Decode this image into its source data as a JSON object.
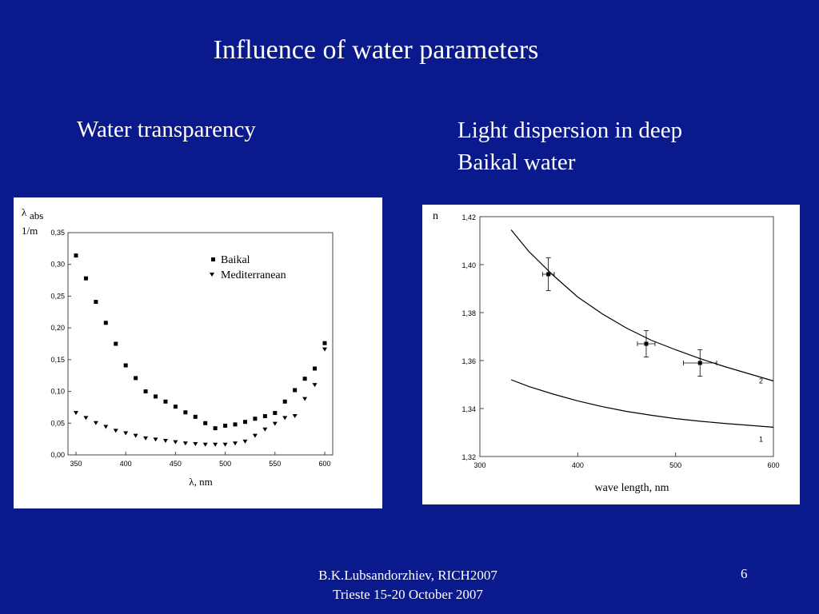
{
  "slide": {
    "title": "Influence of water parameters",
    "left_heading": "Water transparency",
    "right_heading_line1": "Light dispersion in deep",
    "right_heading_line2": "Baikal water",
    "footer_line1": "B.K.Lubsandorzhiev, RICH2007",
    "footer_line2": "Trieste 15-20 October 2007",
    "page_number": "6"
  },
  "chart_data": [
    {
      "type": "scatter",
      "ylabel_symbol": "λ",
      "ylabel_sub": "abs",
      "yunit": "1/m",
      "xlabel": "λ, nm",
      "xlim": [
        350,
        600
      ],
      "ylim": [
        0,
        0.35
      ],
      "x_ticks": [
        "350",
        "400",
        "450",
        "500",
        "550",
        "600"
      ],
      "y_ticks": [
        "0,00",
        "0,05",
        "0,10",
        "0,15",
        "0,20",
        "0,25",
        "0,30",
        "0,35"
      ],
      "legend_position": "top-right",
      "series": [
        {
          "name": "Baikal",
          "marker": "square",
          "x": [
            350,
            360,
            370,
            380,
            390,
            400,
            410,
            420,
            430,
            440,
            450,
            460,
            470,
            480,
            490,
            500,
            510,
            520,
            530,
            540,
            550,
            560,
            570,
            580,
            590,
            600
          ],
          "y": [
            0.314,
            0.278,
            0.241,
            0.208,
            0.175,
            0.141,
            0.121,
            0.1,
            0.092,
            0.084,
            0.076,
            0.067,
            0.06,
            0.05,
            0.042,
            0.046,
            0.048,
            0.052,
            0.057,
            0.061,
            0.066,
            0.084,
            0.102,
            0.12,
            0.136,
            0.176
          ]
        },
        {
          "name": "Mediterranean",
          "marker": "triangle-down",
          "x": [
            350,
            360,
            370,
            380,
            390,
            400,
            410,
            420,
            430,
            440,
            450,
            460,
            470,
            480,
            490,
            500,
            510,
            520,
            530,
            540,
            550,
            560,
            570,
            580,
            590,
            600
          ],
          "y": [
            0.066,
            0.058,
            0.05,
            0.044,
            0.038,
            0.034,
            0.03,
            0.026,
            0.024,
            0.022,
            0.02,
            0.018,
            0.017,
            0.016,
            0.016,
            0.016,
            0.018,
            0.021,
            0.03,
            0.04,
            0.049,
            0.058,
            0.061,
            0.088,
            0.11,
            0.166
          ]
        }
      ]
    },
    {
      "type": "line",
      "ylabel": "n",
      "xlabel": "wave length, nm",
      "xlim": [
        300,
        600
      ],
      "ylim": [
        1.32,
        1.42
      ],
      "x_ticks": [
        "300",
        "400",
        "500",
        "600"
      ],
      "y_ticks": [
        "1,32",
        "1,34",
        "1,36",
        "1,38",
        "1,40",
        "1,42"
      ],
      "curves": [
        {
          "label": "2",
          "x": [
            332,
            350,
            375,
            400,
            425,
            450,
            475,
            500,
            525,
            550,
            575,
            600
          ],
          "y": [
            1.4145,
            1.4055,
            1.3955,
            1.3865,
            1.3795,
            1.3735,
            1.3685,
            1.3645,
            1.3608,
            1.3575,
            1.3545,
            1.3515
          ]
        },
        {
          "label": "1",
          "x": [
            332,
            350,
            375,
            400,
            425,
            450,
            475,
            500,
            525,
            550,
            575,
            600
          ],
          "y": [
            1.352,
            1.3492,
            1.346,
            1.3432,
            1.3408,
            1.3388,
            1.3372,
            1.3358,
            1.3347,
            1.3338,
            1.333,
            1.3322
          ]
        }
      ],
      "points": [
        {
          "x": 370,
          "y": 1.396,
          "xerr": 6,
          "yerr": 0.0068
        },
        {
          "x": 470,
          "y": 1.367,
          "xerr": 9,
          "yerr": 0.0055
        },
        {
          "x": 525,
          "y": 1.359,
          "xerr": 17,
          "yerr": 0.0055
        }
      ]
    }
  ]
}
